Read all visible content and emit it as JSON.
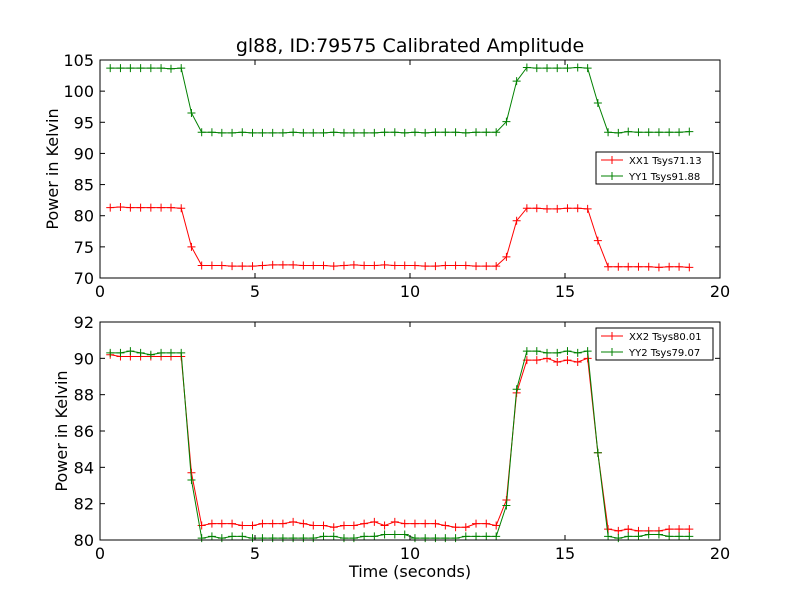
{
  "chart_data": [
    {
      "type": "line",
      "title": "gl88, ID:79575 Calibrated Amplitude",
      "xlabel": "",
      "ylabel": "Power in Kelvin",
      "xlim": [
        0,
        20
      ],
      "ylim": [
        70,
        105
      ],
      "xticks": [
        0,
        5,
        10,
        15,
        20
      ],
      "yticks": [
        70,
        75,
        80,
        85,
        90,
        95,
        100,
        105
      ],
      "grid": false,
      "legend_position": "center-right",
      "series": [
        {
          "name": "XX1 Tsys71.13",
          "color": "#ff0000",
          "marker": "+",
          "x": [
            0.33,
            0.66,
            0.98,
            1.31,
            1.64,
            1.97,
            2.29,
            2.62,
            2.95,
            3.28,
            3.61,
            3.93,
            4.26,
            4.59,
            4.92,
            5.24,
            5.57,
            5.9,
            6.23,
            6.56,
            6.88,
            7.21,
            7.54,
            7.87,
            8.19,
            8.52,
            8.85,
            9.18,
            9.51,
            9.83,
            10.16,
            10.49,
            10.82,
            11.14,
            11.47,
            11.8,
            12.13,
            12.46,
            12.78,
            13.11,
            13.44,
            13.77,
            14.09,
            14.42,
            14.75,
            15.08,
            15.41,
            15.73,
            16.06,
            16.39,
            16.72,
            17.04,
            17.37,
            17.7,
            18.03,
            18.36,
            18.68,
            19.01
          ],
          "y": [
            81.3,
            81.4,
            81.3,
            81.3,
            81.3,
            81.3,
            81.3,
            81.2,
            75.0,
            72.0,
            72.0,
            72.0,
            71.9,
            71.9,
            71.9,
            72.0,
            72.1,
            72.1,
            72.1,
            72.0,
            72.0,
            72.0,
            71.9,
            72.0,
            72.1,
            72.0,
            72.0,
            72.1,
            72.0,
            72.0,
            72.0,
            71.9,
            71.9,
            72.0,
            72.0,
            72.0,
            71.9,
            71.9,
            71.9,
            73.4,
            79.2,
            81.2,
            81.2,
            81.1,
            81.1,
            81.2,
            81.2,
            81.1,
            76.0,
            71.8,
            71.8,
            71.8,
            71.8,
            71.8,
            71.7,
            71.8,
            71.8,
            71.7
          ]
        },
        {
          "name": "YY1 Tsys91.88",
          "color": "#008000",
          "marker": "+",
          "x": [
            0.33,
            0.66,
            0.98,
            1.31,
            1.64,
            1.97,
            2.29,
            2.62,
            2.95,
            3.28,
            3.61,
            3.93,
            4.26,
            4.59,
            4.92,
            5.24,
            5.57,
            5.9,
            6.23,
            6.56,
            6.88,
            7.21,
            7.54,
            7.87,
            8.19,
            8.52,
            8.85,
            9.18,
            9.51,
            9.83,
            10.16,
            10.49,
            10.82,
            11.14,
            11.47,
            11.8,
            12.13,
            12.46,
            12.78,
            13.11,
            13.44,
            13.77,
            14.09,
            14.42,
            14.75,
            15.08,
            15.41,
            15.73,
            16.06,
            16.39,
            16.72,
            17.04,
            17.37,
            17.7,
            18.03,
            18.36,
            18.68,
            19.01
          ],
          "y": [
            103.7,
            103.7,
            103.7,
            103.7,
            103.7,
            103.7,
            103.6,
            103.7,
            96.5,
            93.4,
            93.4,
            93.3,
            93.3,
            93.4,
            93.3,
            93.3,
            93.3,
            93.3,
            93.4,
            93.3,
            93.3,
            93.3,
            93.4,
            93.3,
            93.3,
            93.3,
            93.3,
            93.4,
            93.4,
            93.3,
            93.4,
            93.3,
            93.4,
            93.4,
            93.4,
            93.3,
            93.4,
            93.4,
            93.4,
            95.1,
            101.6,
            103.8,
            103.7,
            103.7,
            103.7,
            103.7,
            103.8,
            103.7,
            98.1,
            93.4,
            93.3,
            93.5,
            93.4,
            93.4,
            93.4,
            93.4,
            93.4,
            93.5
          ]
        }
      ]
    },
    {
      "type": "line",
      "title": "",
      "xlabel": "Time (seconds)",
      "ylabel": "Power in Kelvin",
      "xlim": [
        0,
        20
      ],
      "ylim": [
        80,
        92
      ],
      "xticks": [
        0,
        5,
        10,
        15,
        20
      ],
      "yticks": [
        80,
        82,
        84,
        86,
        88,
        90,
        92
      ],
      "grid": false,
      "legend_position": "top-right",
      "series": [
        {
          "name": "XX2 Tsys80.01",
          "color": "#ff0000",
          "marker": "+",
          "x": [
            0.33,
            0.66,
            0.98,
            1.31,
            1.64,
            1.97,
            2.29,
            2.62,
            2.95,
            3.28,
            3.61,
            3.93,
            4.26,
            4.59,
            4.92,
            5.24,
            5.57,
            5.9,
            6.23,
            6.56,
            6.88,
            7.21,
            7.54,
            7.87,
            8.19,
            8.52,
            8.85,
            9.18,
            9.51,
            9.83,
            10.16,
            10.49,
            10.82,
            11.14,
            11.47,
            11.8,
            12.13,
            12.46,
            12.78,
            13.11,
            13.44,
            13.77,
            14.09,
            14.42,
            14.75,
            15.08,
            15.41,
            15.73,
            16.06,
            16.39,
            16.72,
            17.04,
            17.37,
            17.7,
            18.03,
            18.36,
            18.68,
            19.01
          ],
          "y": [
            90.2,
            90.1,
            90.1,
            90.1,
            90.1,
            90.1,
            90.1,
            90.1,
            83.7,
            80.8,
            80.9,
            80.9,
            80.9,
            80.8,
            80.8,
            80.9,
            80.9,
            80.9,
            81.0,
            80.9,
            80.8,
            80.8,
            80.7,
            80.8,
            80.8,
            80.9,
            81.0,
            80.8,
            81.0,
            80.9,
            80.9,
            80.9,
            80.9,
            80.8,
            80.7,
            80.7,
            80.9,
            80.9,
            80.8,
            82.2,
            88.1,
            89.9,
            89.9,
            90.0,
            89.8,
            89.9,
            89.8,
            90.0,
            84.8,
            80.6,
            80.5,
            80.6,
            80.5,
            80.5,
            80.5,
            80.6,
            80.6,
            80.6
          ]
        },
        {
          "name": "YY2 Tsys79.07",
          "color": "#008000",
          "marker": "+",
          "x": [
            0.33,
            0.66,
            0.98,
            1.31,
            1.64,
            1.97,
            2.29,
            2.62,
            2.95,
            3.28,
            3.61,
            3.93,
            4.26,
            4.59,
            4.92,
            5.24,
            5.57,
            5.9,
            6.23,
            6.56,
            6.88,
            7.21,
            7.54,
            7.87,
            8.19,
            8.52,
            8.85,
            9.18,
            9.51,
            9.83,
            10.16,
            10.49,
            10.82,
            11.14,
            11.47,
            11.8,
            12.13,
            12.46,
            12.78,
            13.11,
            13.44,
            13.77,
            14.09,
            14.42,
            14.75,
            15.08,
            15.41,
            15.73,
            16.06,
            16.39,
            16.72,
            17.04,
            17.37,
            17.7,
            18.03,
            18.36,
            18.68,
            19.01
          ],
          "y": [
            90.3,
            90.3,
            90.4,
            90.3,
            90.2,
            90.3,
            90.3,
            90.3,
            83.3,
            80.1,
            80.2,
            80.1,
            80.2,
            80.2,
            80.1,
            80.1,
            80.1,
            80.1,
            80.1,
            80.1,
            80.1,
            80.2,
            80.2,
            80.1,
            80.1,
            80.2,
            80.2,
            80.3,
            80.3,
            80.3,
            80.1,
            80.1,
            80.1,
            80.1,
            80.1,
            80.2,
            80.2,
            80.2,
            80.2,
            81.9,
            88.3,
            90.4,
            90.4,
            90.3,
            90.3,
            90.4,
            90.3,
            90.4,
            84.8,
            80.2,
            80.1,
            80.2,
            80.2,
            80.3,
            80.3,
            80.2,
            80.2,
            80.2
          ]
        }
      ]
    }
  ]
}
